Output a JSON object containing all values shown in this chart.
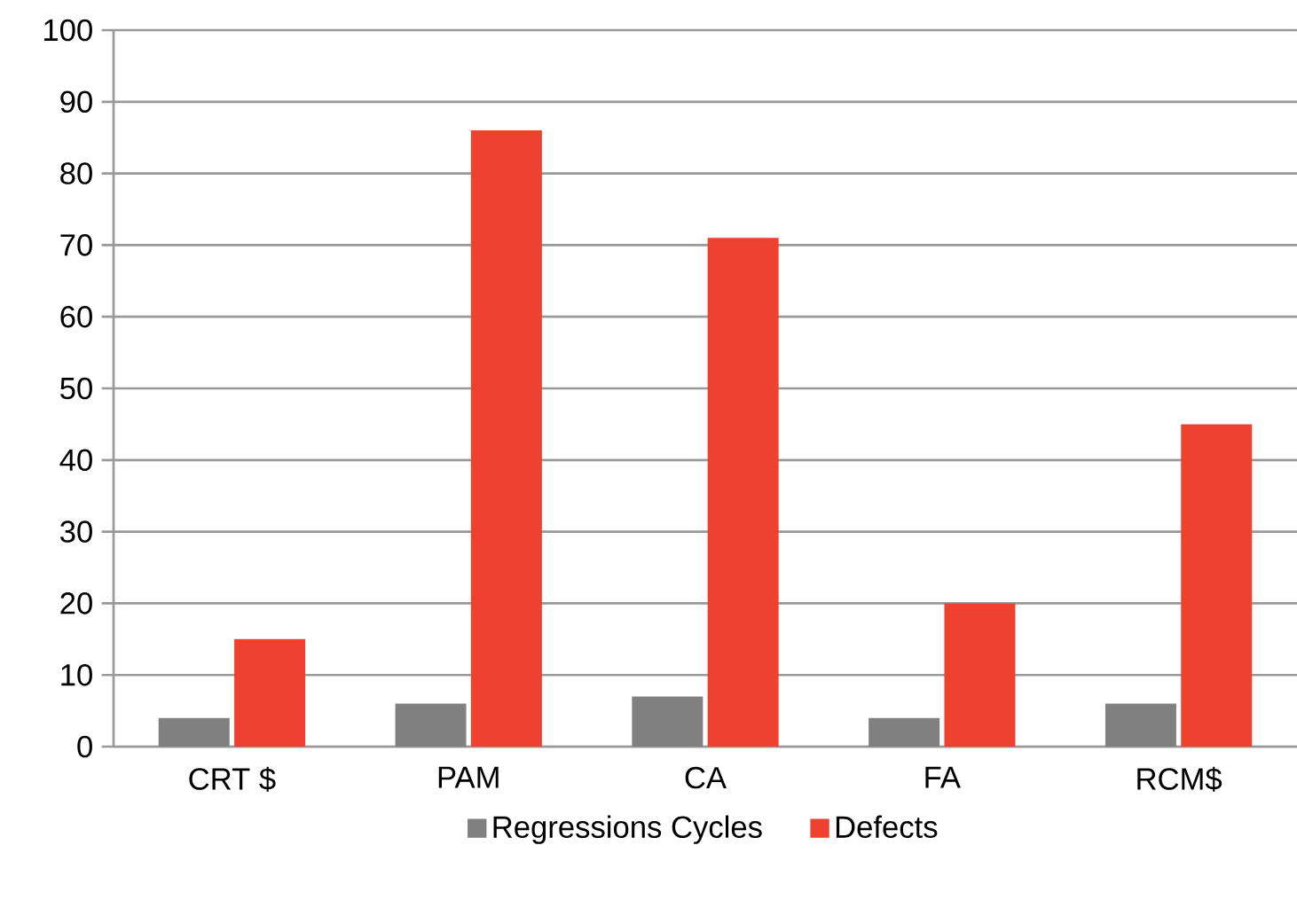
{
  "chart_data": {
    "type": "bar",
    "categories": [
      "CRT $",
      "PAM",
      "CA",
      "FA",
      "RCM$"
    ],
    "series": [
      {
        "name": "Regressions Cycles",
        "color": "#808080",
        "values": [
          4,
          6,
          7,
          4,
          6
        ]
      },
      {
        "name": "Defects",
        "color": "#ee4130",
        "values": [
          15,
          86,
          71,
          20,
          45
        ]
      }
    ],
    "ylim": [
      0,
      100
    ],
    "yticks": [
      0,
      10,
      20,
      30,
      40,
      50,
      60,
      70,
      80,
      90,
      100
    ],
    "grid": "y",
    "legend": "bottom"
  }
}
